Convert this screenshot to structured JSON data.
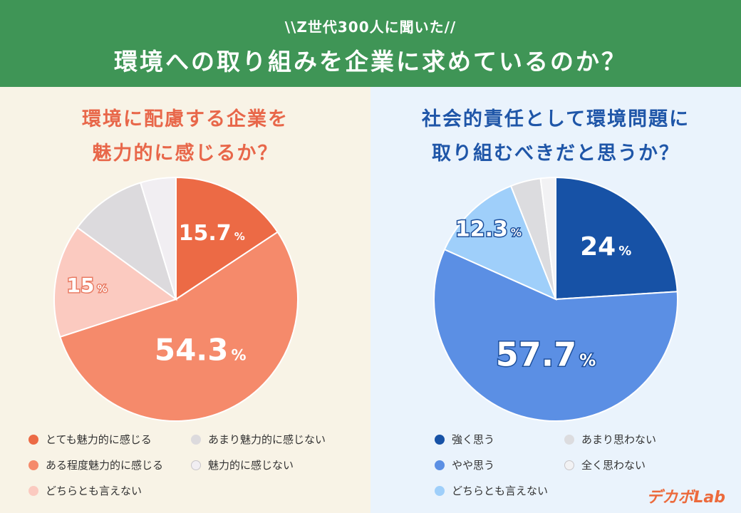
{
  "header": {
    "subtitle": "\\\\Z世代300人に聞いた//",
    "title": "環境への取り組みを企業に求めているのか？"
  },
  "brand": "デカボLab",
  "chart_data": [
    {
      "type": "pie",
      "title_lines": [
        "環境に配慮する企業を",
        "魅力的に感じるか？"
      ],
      "slices": [
        {
          "label": "とても魅力的に感じる",
          "value": 15.7,
          "display": "15.7",
          "color": "#ec6a45"
        },
        {
          "label": "ある程度魅力的に感じる",
          "value": 54.3,
          "display": "54.3",
          "color": "#f58a6b"
        },
        {
          "label": "どちらとも言えない",
          "value": 15,
          "display": "15",
          "color": "#fbcac0"
        },
        {
          "label": "あまり魅力的に感じない",
          "value": 10.3,
          "display": "",
          "color": "#dcdadd"
        },
        {
          "label": "魅力的に感じない",
          "value": 4.7,
          "display": "",
          "color": "#f1eef2"
        }
      ],
      "unit": "%",
      "legend_layout": "two-column-bottom"
    },
    {
      "type": "pie",
      "title_lines": [
        "社会的責任として環境問題に",
        "取り組むべきだと思うか？"
      ],
      "slices": [
        {
          "label": "強く思う",
          "value": 24,
          "display": "24",
          "color": "#1752a6"
        },
        {
          "label": "やや思う",
          "value": 57.7,
          "display": "57.7",
          "color": "#5b8fe4"
        },
        {
          "label": "どちらとも言えない",
          "value": 12.3,
          "display": "12.3",
          "color": "#9fcffa"
        },
        {
          "label": "あまり思わない",
          "value": 4,
          "display": "",
          "color": "#dcdcdf"
        },
        {
          "label": "全く思わない",
          "value": 2,
          "display": "",
          "color": "#f2f2f4"
        }
      ],
      "unit": "%",
      "legend_layout": "two-column-bottom"
    }
  ]
}
